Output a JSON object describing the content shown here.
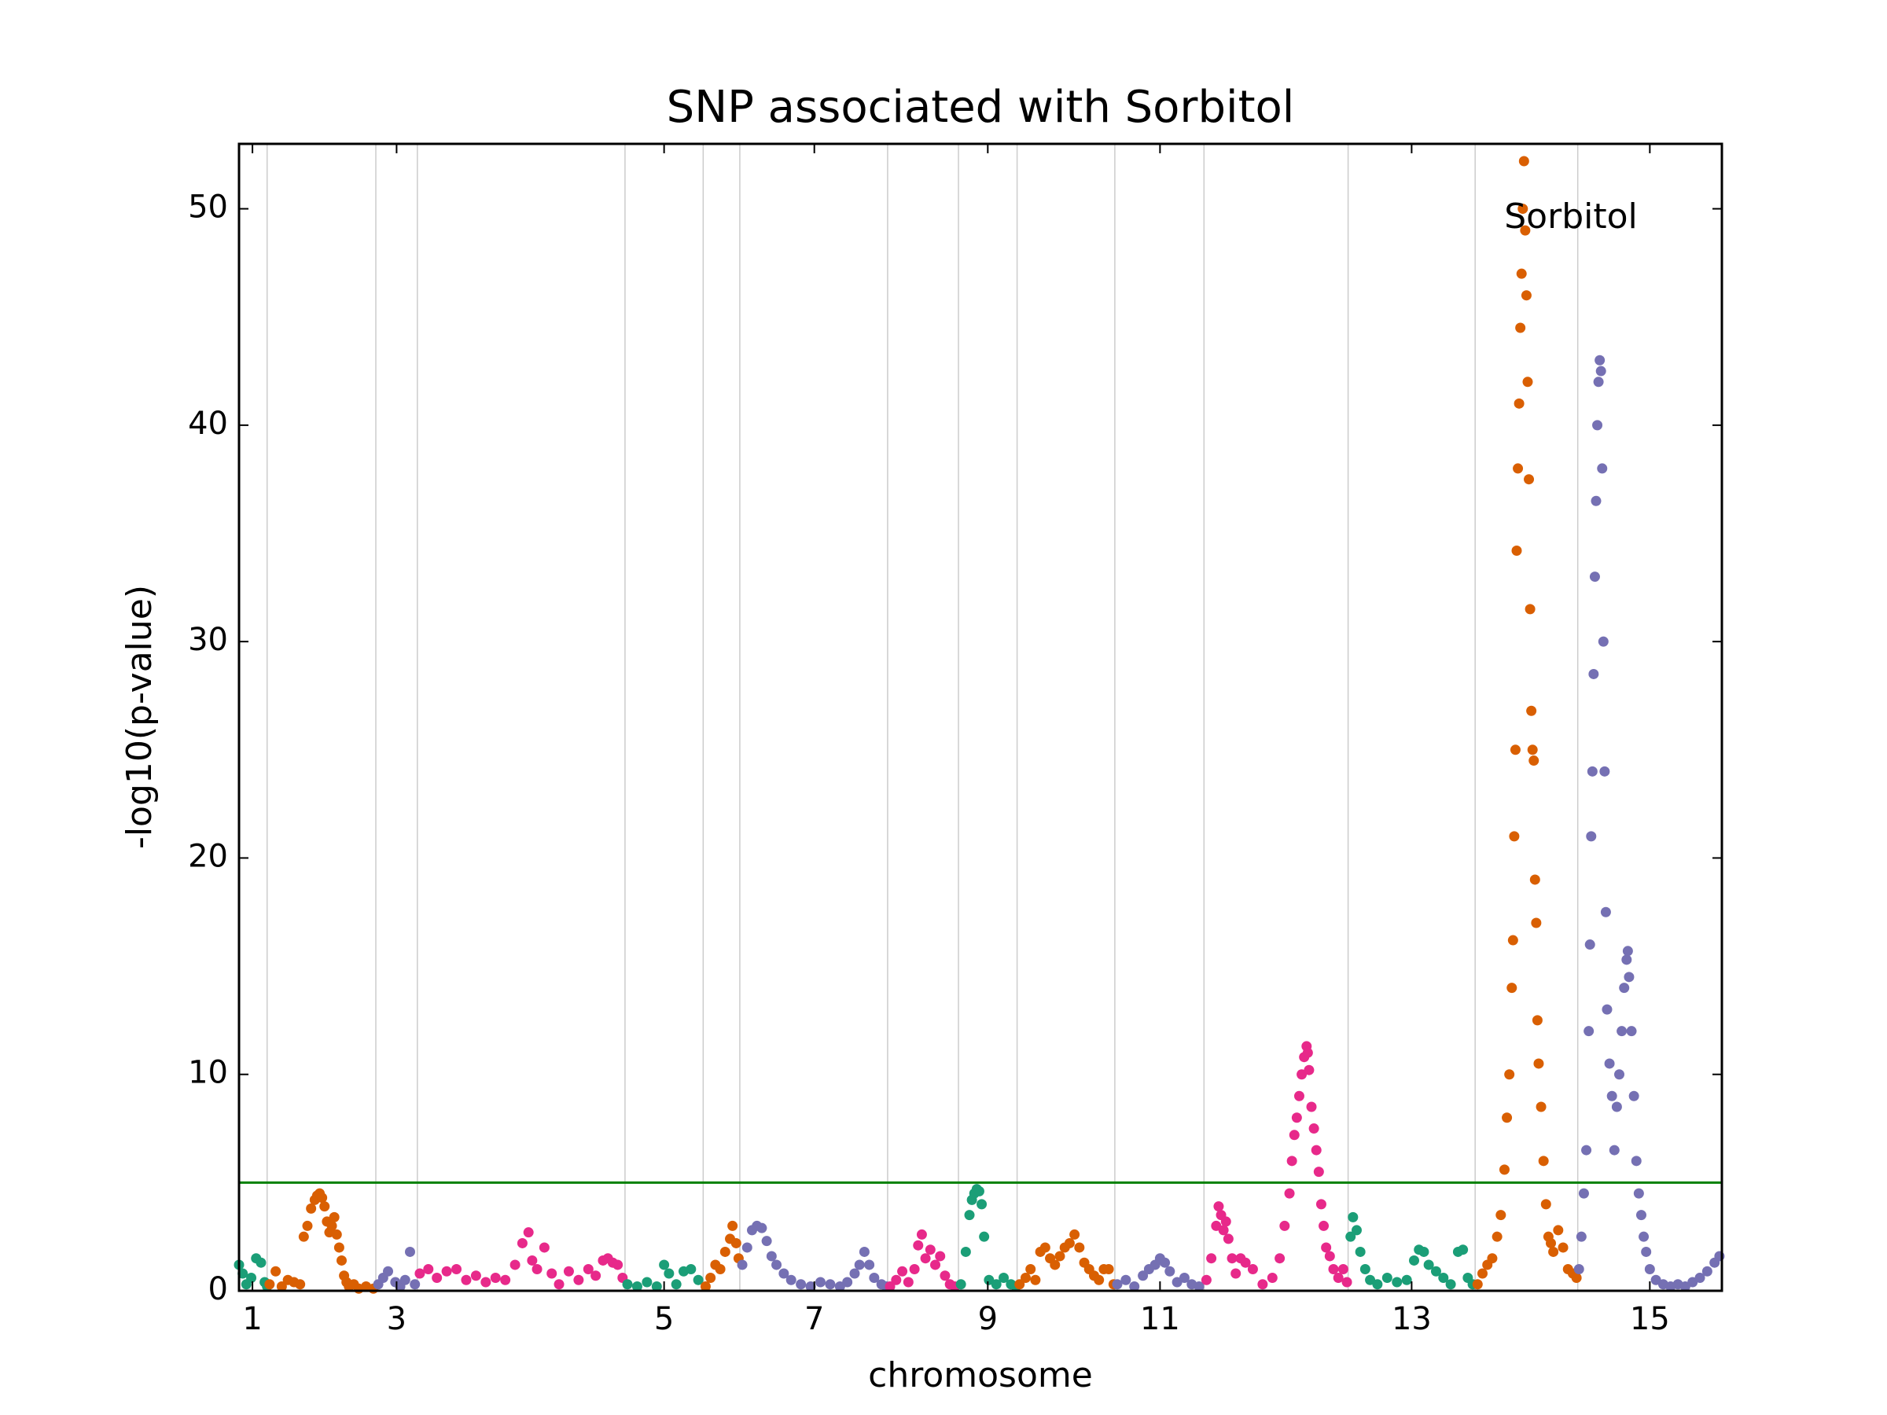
{
  "chart_data": {
    "type": "scatter",
    "title": "SNP associated with Sorbitol",
    "x_label": "chromosome",
    "y_label": "-log10(p-value)",
    "annotation": "Sorbitol",
    "xlim": [
      0,
      1214
    ],
    "ylim": [
      0,
      53
    ],
    "xticks": [
      {
        "value": 11,
        "label": "1"
      },
      {
        "value": 129,
        "label": "3"
      },
      {
        "value": 348,
        "label": "5"
      },
      {
        "value": 471,
        "label": "7"
      },
      {
        "value": 613,
        "label": "9"
      },
      {
        "value": 754,
        "label": "11"
      },
      {
        "value": 960,
        "label": "13"
      },
      {
        "value": 1155,
        "label": "15"
      }
    ],
    "yticks": [
      0,
      10,
      20,
      30,
      40,
      50
    ],
    "xgrid": [
      23,
      112,
      146,
      316,
      380,
      410,
      531,
      589,
      637,
      717,
      790,
      908,
      1012,
      1096
    ],
    "threshold": 5,
    "threshold_color": "#008000",
    "series": [
      {
        "color": "#1b9e77",
        "x": [
          0,
          3,
          6,
          10,
          14,
          18,
          21,
          23
        ],
        "values": [
          1.2,
          0.8,
          0.3,
          0.6,
          1.5,
          1.3,
          0.4,
          0.2
        ]
      },
      {
        "color": "#d95f02",
        "x": [
          25,
          30,
          35,
          40,
          45,
          50,
          53,
          56,
          59,
          62,
          64,
          66,
          68,
          70,
          72,
          74,
          76,
          78,
          80,
          82,
          84,
          86,
          88,
          90,
          94,
          98,
          104,
          110
        ],
        "values": [
          0.3,
          0.9,
          0.2,
          0.5,
          0.4,
          0.3,
          2.5,
          3.0,
          3.8,
          4.2,
          4.4,
          4.5,
          4.3,
          3.9,
          3.2,
          2.7,
          3.0,
          3.4,
          2.6,
          2.0,
          1.4,
          0.7,
          0.4,
          0.2,
          0.3,
          0.1,
          0.2,
          0.1
        ]
      },
      {
        "color": "#7570b3",
        "x": [
          114,
          118,
          122,
          128,
          132,
          136,
          140,
          144
        ],
        "values": [
          0.3,
          0.6,
          0.9,
          0.4,
          0.2,
          0.5,
          1.8,
          0.3
        ]
      },
      {
        "color": "#e7298a",
        "x": [
          148,
          155,
          162,
          170,
          178,
          186,
          194,
          202,
          210,
          218,
          226,
          232,
          237,
          240,
          244,
          250,
          256,
          262,
          270,
          278,
          286,
          292,
          298,
          302,
          306,
          310,
          314
        ],
        "values": [
          0.8,
          1.0,
          0.6,
          0.9,
          1.0,
          0.5,
          0.7,
          0.4,
          0.6,
          0.5,
          1.2,
          2.2,
          2.7,
          1.4,
          1.0,
          2.0,
          0.8,
          0.3,
          0.9,
          0.5,
          1.0,
          0.7,
          1.4,
          1.5,
          1.3,
          1.2,
          0.6
        ]
      },
      {
        "color": "#1b9e77",
        "x": [
          318,
          326,
          334,
          342,
          348,
          352,
          358,
          364,
          370,
          376
        ],
        "values": [
          0.3,
          0.2,
          0.4,
          0.2,
          1.2,
          0.8,
          0.3,
          0.9,
          1.0,
          0.5
        ]
      },
      {
        "color": "#d95f02",
        "x": [
          382,
          386,
          390,
          394,
          398,
          402,
          404,
          407,
          409
        ],
        "values": [
          0.2,
          0.6,
          1.2,
          1.0,
          1.8,
          2.4,
          3.0,
          2.2,
          1.5
        ]
      },
      {
        "color": "#7570b3",
        "x": [
          412,
          416,
          420,
          424,
          428,
          432,
          436,
          440,
          446,
          452,
          460,
          468,
          476,
          484,
          492,
          498,
          504,
          508,
          512,
          516,
          520,
          526,
          530
        ],
        "values": [
          1.2,
          2.0,
          2.8,
          3.0,
          2.9,
          2.3,
          1.6,
          1.2,
          0.8,
          0.5,
          0.3,
          0.2,
          0.4,
          0.3,
          0.2,
          0.4,
          0.8,
          1.2,
          1.8,
          1.2,
          0.6,
          0.3,
          0.2
        ]
      },
      {
        "color": "#e7298a",
        "x": [
          533,
          538,
          543,
          548,
          553,
          556,
          559,
          562,
          566,
          570,
          574,
          578,
          582,
          586
        ],
        "values": [
          0.2,
          0.5,
          0.9,
          0.4,
          1.0,
          2.1,
          2.6,
          1.5,
          1.9,
          1.2,
          1.6,
          0.7,
          0.3,
          0.2
        ]
      },
      {
        "color": "#1b9e77",
        "x": [
          591,
          595,
          598,
          600,
          602,
          604,
          606,
          608,
          610,
          614,
          620,
          626,
          632,
          636
        ],
        "values": [
          0.3,
          1.8,
          3.5,
          4.2,
          4.5,
          4.7,
          4.6,
          4.0,
          2.5,
          0.5,
          0.3,
          0.6,
          0.3,
          0.2
        ]
      },
      {
        "color": "#d95f02",
        "x": [
          639,
          644,
          648,
          652,
          656,
          660,
          664,
          668,
          672,
          676,
          680,
          684,
          688,
          692,
          696,
          700,
          704,
          708,
          712,
          716
        ],
        "values": [
          0.3,
          0.6,
          1.0,
          0.5,
          1.8,
          2.0,
          1.5,
          1.2,
          1.6,
          2.0,
          2.2,
          2.6,
          2.0,
          1.3,
          1.0,
          0.7,
          0.5,
          1.0,
          1.0,
          0.3
        ]
      },
      {
        "color": "#7570b3",
        "x": [
          719,
          726,
          733,
          740,
          745,
          750,
          754,
          758,
          762,
          768,
          774,
          780,
          786
        ],
        "values": [
          0.3,
          0.5,
          0.2,
          0.7,
          1.0,
          1.2,
          1.5,
          1.3,
          0.9,
          0.4,
          0.6,
          0.3,
          0.2
        ]
      },
      {
        "color": "#e7298a",
        "x": [
          792,
          796,
          800,
          802,
          804,
          806,
          808,
          810,
          813,
          816,
          820,
          824,
          830,
          838,
          846,
          852,
          856,
          860,
          862,
          864,
          866,
          868,
          870,
          872,
          874,
          875,
          876,
          878,
          880,
          882,
          884,
          886,
          888,
          890,
          893,
          896,
          900,
          904,
          907
        ],
        "values": [
          0.5,
          1.5,
          3.0,
          3.9,
          3.5,
          2.8,
          3.2,
          2.4,
          1.5,
          0.8,
          1.5,
          1.3,
          1.0,
          0.3,
          0.6,
          1.5,
          3.0,
          4.5,
          6.0,
          7.2,
          8.0,
          9.0,
          10.0,
          10.8,
          11.3,
          11.0,
          10.2,
          8.5,
          7.5,
          6.5,
          5.5,
          4.0,
          3.0,
          2.0,
          1.6,
          1.0,
          0.6,
          1.0,
          0.4
        ]
      },
      {
        "color": "#1b9e77",
        "x": [
          910,
          912,
          915,
          918,
          922,
          926,
          932,
          940,
          948,
          956,
          962,
          966,
          970,
          974,
          980,
          986,
          992,
          998,
          1002,
          1006,
          1010
        ],
        "values": [
          2.5,
          3.4,
          2.8,
          1.8,
          1.0,
          0.5,
          0.3,
          0.6,
          0.4,
          0.5,
          1.4,
          1.9,
          1.8,
          1.2,
          0.9,
          0.6,
          0.3,
          1.8,
          1.9,
          0.6,
          0.3
        ]
      },
      {
        "color": "#d95f02",
        "x": [
          1014,
          1018,
          1022,
          1026,
          1030,
          1033,
          1036,
          1038,
          1040,
          1042,
          1043,
          1044,
          1045,
          1046,
          1047,
          1048,
          1049,
          1050,
          1051,
          1052,
          1053,
          1054,
          1055,
          1056,
          1057,
          1058,
          1059,
          1060,
          1061,
          1062,
          1063,
          1064,
          1066,
          1068,
          1070,
          1072,
          1074,
          1076,
          1080,
          1084,
          1088,
          1092,
          1095
        ],
        "values": [
          0.3,
          0.8,
          1.2,
          1.5,
          2.5,
          3.5,
          5.6,
          8.0,
          10.0,
          14.0,
          16.2,
          21.0,
          25.0,
          34.2,
          38.0,
          41.0,
          44.5,
          47.0,
          50.0,
          52.2,
          49.0,
          46.0,
          42.0,
          37.5,
          31.5,
          26.8,
          25.0,
          24.5,
          19.0,
          17.0,
          12.5,
          10.5,
          8.5,
          6.0,
          4.0,
          2.5,
          2.2,
          1.8,
          2.8,
          2.0,
          1.0,
          0.8,
          0.6
        ]
      },
      {
        "color": "#7570b3",
        "x": [
          1097,
          1099,
          1101,
          1103,
          1105,
          1106,
          1107,
          1108,
          1109,
          1110,
          1111,
          1112,
          1113,
          1114,
          1115,
          1116,
          1117,
          1118,
          1119,
          1120,
          1122,
          1124,
          1126,
          1128,
          1130,
          1132,
          1134,
          1136,
          1137,
          1138,
          1140,
          1142,
          1144,
          1146,
          1148,
          1150,
          1152,
          1155,
          1160,
          1166,
          1172,
          1178,
          1184,
          1190,
          1196,
          1202,
          1208,
          1212
        ],
        "values": [
          1.0,
          2.5,
          4.5,
          6.5,
          12.0,
          16.0,
          21.0,
          24.0,
          28.5,
          33.0,
          36.5,
          40.0,
          42.0,
          43.0,
          42.5,
          38.0,
          30.0,
          24.0,
          17.5,
          13.0,
          10.5,
          9.0,
          6.5,
          8.5,
          10.0,
          12.0,
          14.0,
          15.3,
          15.7,
          14.5,
          12.0,
          9.0,
          6.0,
          4.5,
          3.5,
          2.5,
          1.8,
          1.0,
          0.5,
          0.3,
          0.2,
          0.3,
          0.2,
          0.4,
          0.6,
          0.9,
          1.3,
          1.6
        ]
      }
    ]
  }
}
